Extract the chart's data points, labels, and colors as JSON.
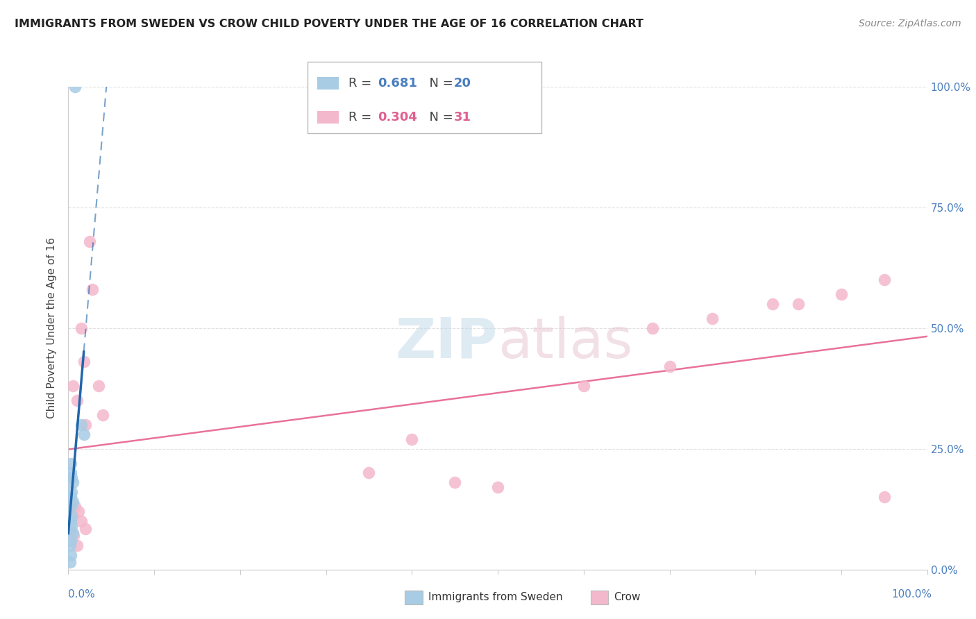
{
  "title": "IMMIGRANTS FROM SWEDEN VS CROW CHILD POVERTY UNDER THE AGE OF 16 CORRELATION CHART",
  "source": "Source: ZipAtlas.com",
  "ylabel": "Child Poverty Under the Age of 16",
  "sweden_color": "#a8cce4",
  "crow_color": "#f4b8cc",
  "sweden_line_color": "#2166ac",
  "crow_line_color": "#e8729a",
  "sweden_scatter": [
    [
      0.8,
      100.0
    ],
    [
      1.5,
      30.0
    ],
    [
      1.8,
      28.0
    ],
    [
      0.3,
      22.0
    ],
    [
      0.3,
      20.0
    ],
    [
      0.4,
      19.0
    ],
    [
      0.5,
      18.0
    ],
    [
      0.4,
      16.0
    ],
    [
      0.3,
      15.0
    ],
    [
      0.5,
      14.0
    ],
    [
      0.3,
      13.0
    ],
    [
      0.4,
      11.0
    ],
    [
      0.3,
      10.0
    ],
    [
      0.4,
      9.0
    ],
    [
      0.2,
      8.5
    ],
    [
      0.5,
      7.5
    ],
    [
      0.3,
      6.0
    ],
    [
      0.2,
      5.0
    ],
    [
      0.3,
      3.0
    ],
    [
      0.2,
      1.5
    ]
  ],
  "crow_scatter": [
    [
      2.5,
      68.0
    ],
    [
      2.8,
      58.0
    ],
    [
      1.5,
      50.0
    ],
    [
      1.8,
      43.0
    ],
    [
      0.5,
      38.0
    ],
    [
      3.5,
      38.0
    ],
    [
      1.0,
      35.0
    ],
    [
      4.0,
      32.0
    ],
    [
      2.0,
      30.0
    ],
    [
      68.0,
      50.0
    ],
    [
      75.0,
      52.0
    ],
    [
      82.0,
      55.0
    ],
    [
      85.0,
      55.0
    ],
    [
      90.0,
      57.0
    ],
    [
      95.0,
      60.0
    ],
    [
      60.0,
      38.0
    ],
    [
      70.0,
      42.0
    ],
    [
      40.0,
      27.0
    ],
    [
      35.0,
      20.0
    ],
    [
      45.0,
      18.0
    ],
    [
      50.0,
      17.0
    ],
    [
      95.0,
      15.0
    ],
    [
      0.3,
      14.0
    ],
    [
      0.8,
      13.0
    ],
    [
      1.2,
      12.0
    ],
    [
      0.5,
      11.0
    ],
    [
      1.5,
      10.0
    ],
    [
      2.0,
      8.5
    ],
    [
      0.4,
      7.5
    ],
    [
      0.6,
      7.0
    ],
    [
      1.0,
      5.0
    ]
  ],
  "xlim": [
    0,
    100
  ],
  "ylim": [
    0,
    100
  ],
  "background_color": "#ffffff",
  "grid_color": "#e0e0e0"
}
